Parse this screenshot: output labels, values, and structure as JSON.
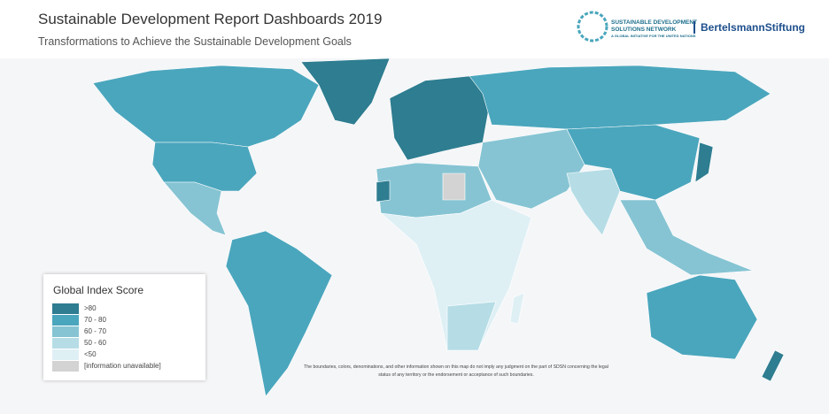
{
  "header": {
    "title": "Sustainable Development Report Dashboards 2019",
    "subtitle": "Transformations to Achieve the Sustainable Development Goals",
    "sdsn_logo": [
      "SUSTAINABLE DEVELOPMENT",
      "SOLUTIONS NETWORK",
      "A GLOBAL INITIATIVE FOR THE UNITED NATIONS"
    ],
    "partner_logo": "BertelsmannStiftung"
  },
  "legend": {
    "title": "Global Index Score",
    "items": [
      {
        "label": ">80",
        "color": "#2e7d90"
      },
      {
        "label": "70 - 80",
        "color": "#4aa6bd"
      },
      {
        "label": "60 - 70",
        "color": "#86c4d3"
      },
      {
        "label": "50 - 60",
        "color": "#b6dde6"
      },
      {
        "label": "<50",
        "color": "#dff0f5"
      },
      {
        "label": "[information unavailable]",
        "color": "#d3d3d3"
      }
    ]
  },
  "disclaimer": [
    "The boundaries, colors, denominations, and other information shown on this map do not imply any judgment on the part of SDSN concerning the legal",
    "status of any territory or the endorsement or acceptance of such boundaries."
  ]
}
